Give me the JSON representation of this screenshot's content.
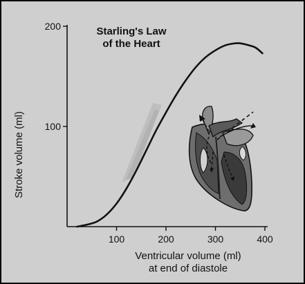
{
  "chart_data": {
    "type": "line",
    "title_lines": [
      "Starling's Law",
      "of the Heart"
    ],
    "ylabel": "Stroke volume (ml)",
    "xlabel_lines": [
      "Ventricular volume (ml)",
      "at end of diastole"
    ],
    "xlim": [
      0,
      400
    ],
    "ylim": [
      0,
      200
    ],
    "x_ticks": [
      100,
      200,
      300,
      400
    ],
    "y_ticks": [
      100,
      200
    ],
    "grid": false,
    "series": [
      {
        "x": [
          20,
          40,
          60,
          80,
          100,
          120,
          140,
          160,
          180,
          200,
          220,
          240,
          260,
          280,
          300,
          320,
          340,
          350,
          360,
          380,
          395
        ],
        "y": [
          0,
          2,
          5,
          12,
          23,
          38,
          56,
          76,
          96,
          114,
          131,
          146,
          159,
          169,
          176,
          181,
          183,
          183,
          182,
          179,
          173
        ]
      }
    ]
  },
  "icons": {
    "heart": "heart-anatomy-illustration"
  }
}
